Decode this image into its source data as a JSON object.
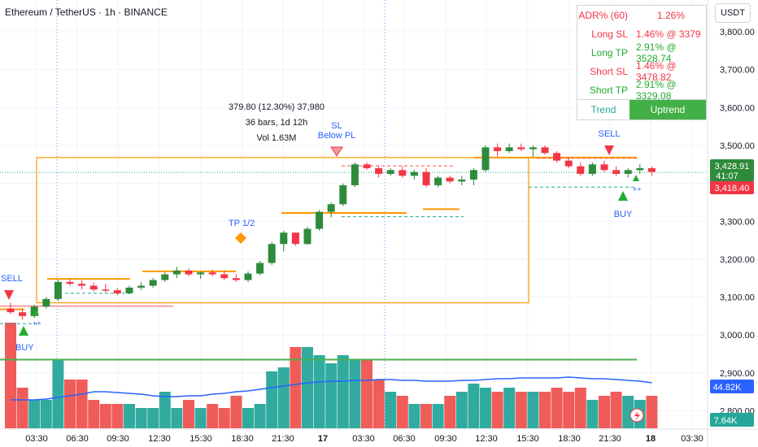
{
  "header": {
    "title": "Ethereum / TetherUS · 1h · BINANCE"
  },
  "axis": {
    "currency": "USDT"
  },
  "stats": {
    "rows": [
      {
        "key": "ADR% (60)",
        "value": "1.26%",
        "color": "#f23645"
      },
      {
        "key": "Long SL",
        "value": "1.46% @ 3379",
        "color": "#f23645"
      },
      {
        "key": "Long TP",
        "value": "2.91% @ 3528.74",
        "color": "#22ab2f"
      },
      {
        "key": "Short SL",
        "value": "1.46% @ 3478.82",
        "color": "#f23645"
      },
      {
        "key": "Short TP",
        "value": "2.91% @ 3329.08",
        "color": "#22ab2f"
      }
    ],
    "trend_label": "Trend",
    "trend_value": "Uptrend"
  },
  "measure": {
    "line1": "379.80 (12.30%) 37,980",
    "line2": "36 bars, 1d 12h",
    "line3": "Vol 1.63M"
  },
  "labels": {
    "sell": "SELL",
    "buy": "BUY",
    "tp": "TP 1/2",
    "sl": "SL",
    "sl2": "Below PL",
    "plus": "++"
  },
  "price_badges": {
    "last": "3,428.91",
    "countdown": "41:07",
    "other": "3,418.40",
    "vol_ma": "44.82K",
    "vol": "7.64K"
  },
  "colors": {
    "up": "#26a69a",
    "down": "#f23645",
    "orange": "#ff9800",
    "blue": "#2962ff",
    "green_line": "#4caf50"
  },
  "chart_data": {
    "type": "candlestick",
    "title": "Ethereum / TetherUS · 1h · BINANCE",
    "y_ticks": [
      2800,
      2900,
      3000,
      3100,
      3200,
      3300,
      3400,
      3500,
      3600,
      3700,
      3800
    ],
    "y_tick_labels": [
      "2,800.00",
      "2,900.00",
      "3,000.00",
      "3,100.00",
      "3,200.00",
      "3,300.00",
      "",
      "3,500.00",
      "3,600.00",
      "3,700.00",
      "3,800.00"
    ],
    "x_ticks": [
      "03:30",
      "06:30",
      "09:30",
      "12:30",
      "15:30",
      "18:30",
      "21:30",
      "17",
      "03:30",
      "06:30",
      "09:30",
      "12:30",
      "15:30",
      "18:30",
      "21:30",
      "18",
      "03:30"
    ],
    "ylim": [
      2760,
      3825
    ],
    "candles": [
      [
        3070,
        3085,
        3055,
        3060
      ],
      [
        3060,
        3068,
        3040,
        3050
      ],
      [
        3050,
        3080,
        3045,
        3075
      ],
      [
        3075,
        3100,
        3070,
        3095
      ],
      [
        3095,
        3145,
        3090,
        3140
      ],
      [
        3140,
        3148,
        3130,
        3135
      ],
      [
        3135,
        3145,
        3120,
        3130
      ],
      [
        3130,
        3138,
        3115,
        3120
      ],
      [
        3120,
        3135,
        3112,
        3118
      ],
      [
        3118,
        3125,
        3105,
        3110
      ],
      [
        3110,
        3130,
        3108,
        3125
      ],
      [
        3125,
        3140,
        3118,
        3130
      ],
      [
        3130,
        3150,
        3125,
        3145
      ],
      [
        3145,
        3165,
        3140,
        3160
      ],
      [
        3160,
        3180,
        3150,
        3170
      ],
      [
        3170,
        3175,
        3155,
        3160
      ],
      [
        3160,
        3168,
        3148,
        3165
      ],
      [
        3165,
        3172,
        3155,
        3160
      ],
      [
        3160,
        3170,
        3145,
        3150
      ],
      [
        3150,
        3160,
        3140,
        3145
      ],
      [
        3145,
        3168,
        3140,
        3162
      ],
      [
        3162,
        3195,
        3158,
        3190
      ],
      [
        3190,
        3245,
        3185,
        3240
      ],
      [
        3240,
        3275,
        3220,
        3270
      ],
      [
        3270,
        3270,
        3235,
        3240
      ],
      [
        3240,
        3285,
        3238,
        3280
      ],
      [
        3280,
        3330,
        3275,
        3325
      ],
      [
        3325,
        3350,
        3310,
        3345
      ],
      [
        3345,
        3400,
        3340,
        3395
      ],
      [
        3395,
        3455,
        3390,
        3450
      ],
      [
        3450,
        3455,
        3435,
        3440
      ],
      [
        3440,
        3445,
        3415,
        3425
      ],
      [
        3425,
        3440,
        3420,
        3435
      ],
      [
        3435,
        3445,
        3415,
        3420
      ],
      [
        3420,
        3435,
        3410,
        3430
      ],
      [
        3430,
        3440,
        3390,
        3395
      ],
      [
        3395,
        3420,
        3390,
        3415
      ],
      [
        3415,
        3420,
        3400,
        3405
      ],
      [
        3405,
        3420,
        3395,
        3410
      ],
      [
        3410,
        3440,
        3395,
        3435
      ],
      [
        3435,
        3500,
        3430,
        3495
      ],
      [
        3495,
        3505,
        3470,
        3485
      ],
      [
        3485,
        3505,
        3480,
        3495
      ],
      [
        3495,
        3505,
        3485,
        3490
      ],
      [
        3490,
        3500,
        3470,
        3495
      ],
      [
        3495,
        3500,
        3475,
        3480
      ],
      [
        3480,
        3485,
        3455,
        3460
      ],
      [
        3460,
        3470,
        3440,
        3445
      ],
      [
        3445,
        3455,
        3420,
        3425
      ],
      [
        3425,
        3455,
        3420,
        3450
      ],
      [
        3450,
        3460,
        3430,
        3435
      ],
      [
        3435,
        3445,
        3420,
        3425
      ],
      [
        3425,
        3440,
        3415,
        3435
      ],
      [
        3435,
        3450,
        3425,
        3440
      ],
      [
        3440,
        3445,
        3420,
        3430
      ]
    ],
    "volumes": [
      13,
      5,
      3.5,
      3.5,
      8.5,
      6,
      6,
      3.5,
      3,
      3,
      3,
      2.5,
      2.5,
      4.5,
      2.5,
      3.5,
      2.5,
      3,
      2.5,
      4,
      2.5,
      3,
      7,
      7.5,
      10,
      10,
      9,
      8,
      9,
      8.5,
      8.5,
      6,
      4.5,
      4,
      3,
      3,
      3,
      4,
      4.5,
      5.5,
      5,
      4.5,
      5,
      4.5,
      4.5,
      4.5,
      5,
      4.5,
      5,
      3.5,
      4,
      4.5,
      4,
      3.5,
      4
    ],
    "volume_ma": [
      3.5,
      3.5,
      3.5,
      3.6,
      3.8,
      4,
      4.2,
      4.5,
      4.5,
      4.4,
      4.3,
      4.2,
      4,
      3.9,
      3.9,
      4,
      4,
      4.2,
      4.3,
      4.5,
      4.6,
      4.8,
      5,
      5.2,
      5.4,
      5.6,
      5.7,
      5.8,
      5.8,
      5.9,
      5.9,
      6,
      6,
      5.9,
      5.9,
      5.8,
      5.8,
      5.8,
      5.9,
      5.9,
      6,
      6.1,
      6.1,
      6.2,
      6.2,
      6.2,
      6.2,
      6.3,
      6.2,
      6.1,
      6.1,
      6,
      5.9,
      5.8,
      5.6
    ]
  }
}
